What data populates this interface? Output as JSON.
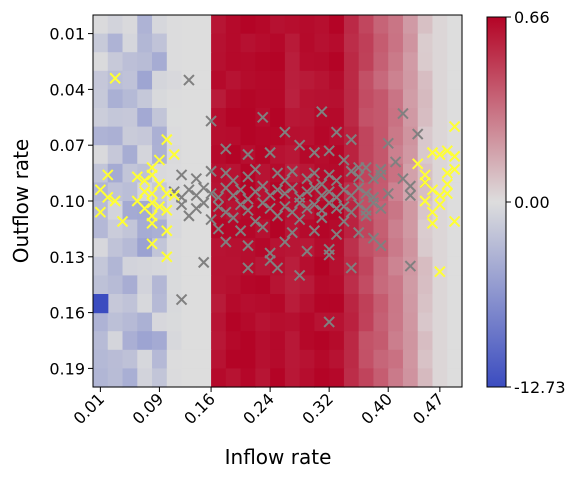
{
  "chart_data": {
    "type": "heatmap",
    "xlabel": "Inflow rate",
    "ylabel": "Outflow rate",
    "xticks": [
      "0.01",
      "0.09",
      "0.16",
      "0.24",
      "0.32",
      "0.40",
      "0.47"
    ],
    "yticks": [
      "0.01",
      "0.04",
      "0.07",
      "0.10",
      "0.13",
      "0.16",
      "0.19"
    ],
    "xlim": [
      0.0,
      0.5
    ],
    "ylim": [
      0.0,
      0.2
    ],
    "grid": false,
    "colormap": "coolwarm",
    "colorbar": {
      "min": -12.73,
      "center": 0.0,
      "max": 0.66,
      "tick_labels": [
        "0.66",
        "0.00",
        "-12.73"
      ]
    },
    "heatmap_grid": {
      "rows": 20,
      "cols": 25
    },
    "heatmap_column_profile": [
      -2.5,
      -3,
      -3,
      -3.5,
      -3,
      -0.3,
      0,
      0,
      0.62,
      0.64,
      0.65,
      0.63,
      0.64,
      0.6,
      0.62,
      0.63,
      0.64,
      0.55,
      0.45,
      0.38,
      0.3,
      0.2,
      0.08,
      0.02,
      0.0
    ],
    "heatmap_notable_cells": [
      {
        "x": 0.01,
        "y": 0.16,
        "value": -12.73
      }
    ],
    "series": [
      {
        "marker": "x",
        "color": "#808080",
        "points": [
          [
            0.13,
            0.035
          ],
          [
            0.16,
            0.057
          ],
          [
            0.23,
            0.055
          ],
          [
            0.31,
            0.052
          ],
          [
            0.42,
            0.053
          ],
          [
            0.26,
            0.063
          ],
          [
            0.33,
            0.063
          ],
          [
            0.35,
            0.067
          ],
          [
            0.4,
            0.069
          ],
          [
            0.44,
            0.064
          ],
          [
            0.18,
            0.072
          ],
          [
            0.21,
            0.075
          ],
          [
            0.24,
            0.074
          ],
          [
            0.28,
            0.07
          ],
          [
            0.3,
            0.074
          ],
          [
            0.32,
            0.073
          ],
          [
            0.34,
            0.078
          ],
          [
            0.36,
            0.082
          ],
          [
            0.39,
            0.083
          ],
          [
            0.41,
            0.079
          ],
          [
            0.12,
            0.086
          ],
          [
            0.14,
            0.088
          ],
          [
            0.16,
            0.084
          ],
          [
            0.18,
            0.085
          ],
          [
            0.19,
            0.089
          ],
          [
            0.21,
            0.087
          ],
          [
            0.22,
            0.083
          ],
          [
            0.25,
            0.085
          ],
          [
            0.27,
            0.084
          ],
          [
            0.29,
            0.088
          ],
          [
            0.3,
            0.085
          ],
          [
            0.32,
            0.086
          ],
          [
            0.33,
            0.089
          ],
          [
            0.35,
            0.084
          ],
          [
            0.36,
            0.087
          ],
          [
            0.38,
            0.088
          ],
          [
            0.39,
            0.086
          ],
          [
            0.42,
            0.088
          ],
          [
            0.43,
            0.092
          ],
          [
            0.45,
            0.09
          ],
          [
            0.11,
            0.095
          ],
          [
            0.12,
            0.098
          ],
          [
            0.13,
            0.094
          ],
          [
            0.14,
            0.097
          ],
          [
            0.15,
            0.093
          ],
          [
            0.16,
            0.096
          ],
          [
            0.17,
            0.098
          ],
          [
            0.18,
            0.093
          ],
          [
            0.19,
            0.097
          ],
          [
            0.2,
            0.094
          ],
          [
            0.21,
            0.099
          ],
          [
            0.22,
            0.095
          ],
          [
            0.23,
            0.092
          ],
          [
            0.24,
            0.097
          ],
          [
            0.25,
            0.094
          ],
          [
            0.26,
            0.096
          ],
          [
            0.27,
            0.093
          ],
          [
            0.28,
            0.098
          ],
          [
            0.29,
            0.095
          ],
          [
            0.3,
            0.093
          ],
          [
            0.31,
            0.097
          ],
          [
            0.32,
            0.095
          ],
          [
            0.33,
            0.098
          ],
          [
            0.34,
            0.094
          ],
          [
            0.35,
            0.097
          ],
          [
            0.36,
            0.093
          ],
          [
            0.37,
            0.096
          ],
          [
            0.38,
            0.098
          ],
          [
            0.4,
            0.096
          ],
          [
            0.43,
            0.097
          ],
          [
            0.12,
            0.102
          ],
          [
            0.14,
            0.104
          ],
          [
            0.15,
            0.101
          ],
          [
            0.17,
            0.103
          ],
          [
            0.18,
            0.106
          ],
          [
            0.2,
            0.102
          ],
          [
            0.21,
            0.105
          ],
          [
            0.23,
            0.101
          ],
          [
            0.24,
            0.104
          ],
          [
            0.26,
            0.103
          ],
          [
            0.27,
            0.106
          ],
          [
            0.28,
            0.101
          ],
          [
            0.29,
            0.104
          ],
          [
            0.3,
            0.102
          ],
          [
            0.31,
            0.105
          ],
          [
            0.32,
            0.101
          ],
          [
            0.33,
            0.104
          ],
          [
            0.34,
            0.103
          ],
          [
            0.35,
            0.106
          ],
          [
            0.36,
            0.102
          ],
          [
            0.37,
            0.105
          ],
          [
            0.38,
            0.101
          ],
          [
            0.39,
            0.104
          ],
          [
            0.13,
            0.108
          ],
          [
            0.16,
            0.11
          ],
          [
            0.19,
            0.109
          ],
          [
            0.22,
            0.111
          ],
          [
            0.25,
            0.108
          ],
          [
            0.28,
            0.11
          ],
          [
            0.31,
            0.109
          ],
          [
            0.34,
            0.111
          ],
          [
            0.37,
            0.108
          ],
          [
            0.17,
            0.115
          ],
          [
            0.2,
            0.116
          ],
          [
            0.23,
            0.114
          ],
          [
            0.27,
            0.117
          ],
          [
            0.3,
            0.116
          ],
          [
            0.33,
            0.118
          ],
          [
            0.36,
            0.117
          ],
          [
            0.38,
            0.12
          ],
          [
            0.18,
            0.122
          ],
          [
            0.21,
            0.124
          ],
          [
            0.26,
            0.122
          ],
          [
            0.32,
            0.126
          ],
          [
            0.39,
            0.124
          ],
          [
            0.24,
            0.128
          ],
          [
            0.29,
            0.127
          ],
          [
            0.15,
            0.133
          ],
          [
            0.24,
            0.132
          ],
          [
            0.32,
            0.129
          ],
          [
            0.21,
            0.136
          ],
          [
            0.25,
            0.136
          ],
          [
            0.35,
            0.136
          ],
          [
            0.43,
            0.135
          ],
          [
            0.28,
            0.14
          ],
          [
            0.12,
            0.153
          ],
          [
            0.32,
            0.165
          ],
          [
            0.37,
            0.082
          ],
          [
            0.31,
            0.091
          ],
          [
            0.26,
            0.089
          ]
        ]
      },
      {
        "marker": "x",
        "color": "#ffff33",
        "points": [
          [
            0.03,
            0.034
          ],
          [
            0.1,
            0.067
          ],
          [
            0.11,
            0.075
          ],
          [
            0.09,
            0.078
          ],
          [
            0.08,
            0.082
          ],
          [
            0.08,
            0.086
          ],
          [
            0.06,
            0.087
          ],
          [
            0.02,
            0.086
          ],
          [
            0.07,
            0.089
          ],
          [
            0.09,
            0.091
          ],
          [
            0.01,
            0.094
          ],
          [
            0.07,
            0.095
          ],
          [
            0.08,
            0.096
          ],
          [
            0.1,
            0.096
          ],
          [
            0.11,
            0.097
          ],
          [
            0.02,
            0.098
          ],
          [
            0.03,
            0.1
          ],
          [
            0.06,
            0.1
          ],
          [
            0.08,
            0.101
          ],
          [
            0.09,
            0.103
          ],
          [
            0.07,
            0.104
          ],
          [
            0.1,
            0.105
          ],
          [
            0.01,
            0.106
          ],
          [
            0.08,
            0.108
          ],
          [
            0.04,
            0.111
          ],
          [
            0.08,
            0.112
          ],
          [
            0.1,
            0.116
          ],
          [
            0.08,
            0.123
          ],
          [
            0.1,
            0.13
          ],
          [
            0.49,
            0.06
          ],
          [
            0.48,
            0.073
          ],
          [
            0.46,
            0.074
          ],
          [
            0.47,
            0.075
          ],
          [
            0.49,
            0.076
          ],
          [
            0.49,
            0.083
          ],
          [
            0.48,
            0.085
          ],
          [
            0.45,
            0.086
          ],
          [
            0.48,
            0.091
          ],
          [
            0.46,
            0.094
          ],
          [
            0.47,
            0.097
          ],
          [
            0.45,
            0.1
          ],
          [
            0.47,
            0.102
          ],
          [
            0.46,
            0.106
          ],
          [
            0.49,
            0.111
          ],
          [
            0.46,
            0.112
          ],
          [
            0.47,
            0.138
          ],
          [
            0.44,
            0.08
          ],
          [
            0.48,
            0.096
          ],
          [
            0.45,
            0.09
          ]
        ]
      }
    ]
  }
}
